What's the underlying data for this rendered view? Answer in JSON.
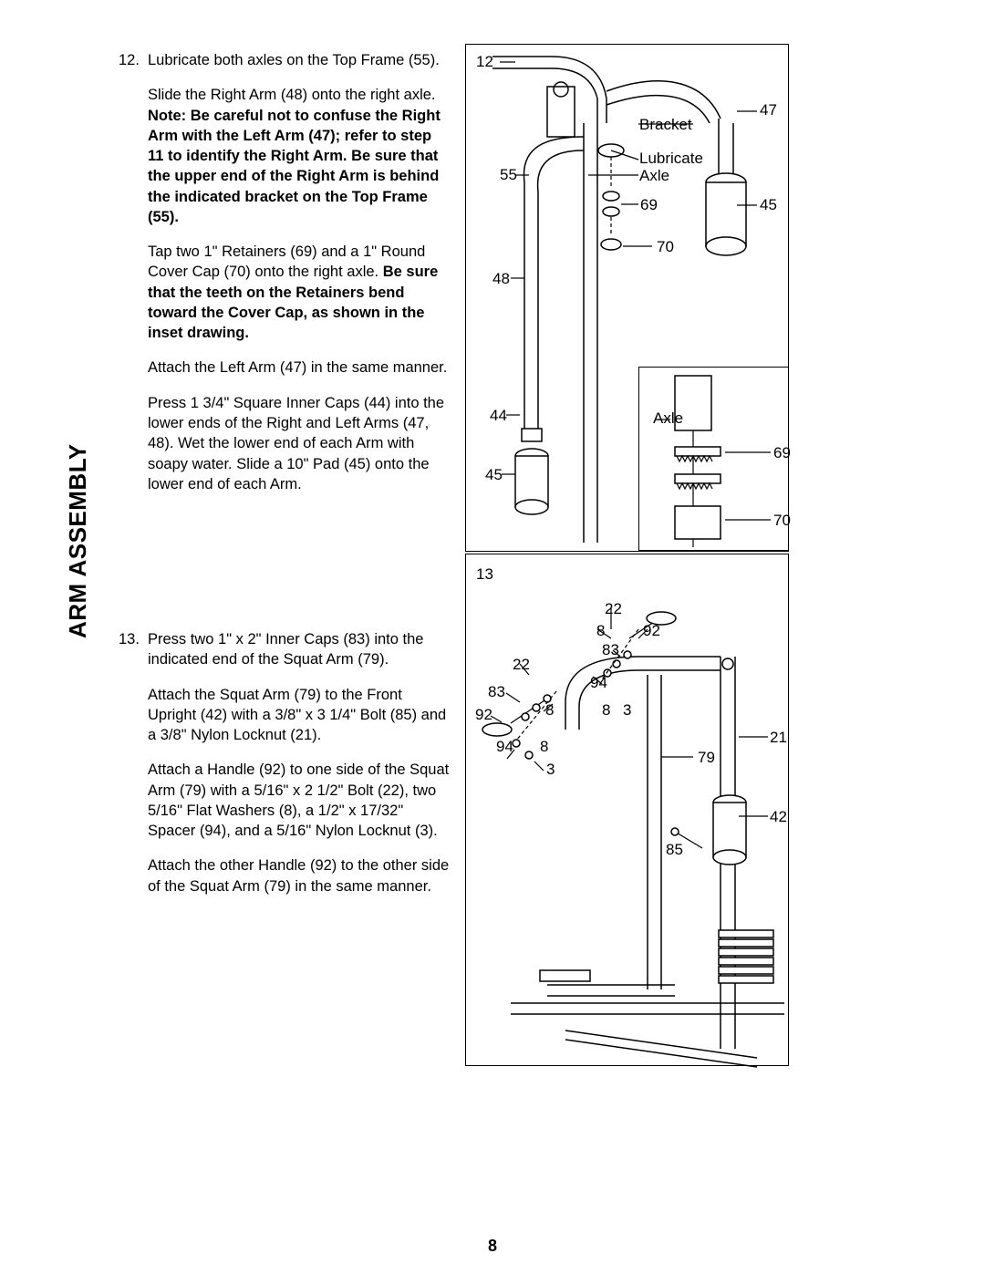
{
  "page_number": "8",
  "side_label": "ARM ASSEMBLY",
  "steps": [
    {
      "num": "12.",
      "paras": [
        {
          "html": "Lubricate both axles on the Top Frame (55)."
        },
        {
          "html": "Slide the Right Arm (48) onto the right axle. <span class=\"b\">Note: Be careful not to confuse the Right Arm with the Left Arm (47); refer to step 11 to identify the Right Arm. Be sure that the upper end of the Right Arm is behind the indicated bracket on the Top Frame (55).</span>"
        },
        {
          "html": "Tap two 1\" Retainers (69) and a 1\" Round Cover Cap (70) onto the right axle. <span class=\"b\">Be sure that the teeth on the Retainers bend toward the Cover Cap, as shown in the inset drawing.</span>"
        },
        {
          "html": "Attach the Left Arm (47) in the same manner."
        },
        {
          "html": "Press 1 3/4\" Square Inner Caps (44) into the lower ends of the Right and Left Arms (47, 48). Wet the lower end of each Arm with soapy water. Slide a 10\" Pad (45) onto the lower end of each Arm."
        }
      ]
    },
    {
      "num": "13.",
      "paras": [
        {
          "html": "Press two 1\" x 2\" Inner Caps (83) into the indicated end of the Squat Arm (79)."
        },
        {
          "html": "Attach the Squat Arm (79) to the Front Upright (42) with a 3/8\" x 3 1/4\" Bolt (85) and a 3/8\" Nylon Locknut (21)."
        },
        {
          "html": "Attach a Handle (92) to one side of the Squat Arm (79) with a 5/16\" x 2 1/2\" Bolt (22), two 5/16\" Flat Washers (8), a 1/2\" x 17/32\" Spacer (94), and a 5/16\" Nylon Locknut (3)."
        },
        {
          "html": "Attach the other Handle (92) to the other side of the Squat Arm (79) in the same manner."
        }
      ]
    }
  ],
  "panel12_idx": "12",
  "panel13_idx": "13",
  "labels": {
    "bracket": "Bracket",
    "lubricate": "Lubricate",
    "axle1": "Axle",
    "axle2": "Axle",
    "n47": "47",
    "n55": "55",
    "n69a": "69",
    "n45a": "45",
    "n70a": "70",
    "n48": "48",
    "n44": "44",
    "n45b": "45",
    "n69b": "69",
    "n70b": "70",
    "n22a": "22",
    "n8a": "8",
    "n92a": "92",
    "n83a": "83",
    "n22b": "22",
    "n83b": "83",
    "n94a": "94",
    "n92b": "92",
    "n8b": "8",
    "n8c": "8",
    "n3a": "3",
    "n94b": "94",
    "n8d": "8",
    "n3b": "3",
    "n79": "79",
    "n21": "21",
    "n42": "42",
    "n85": "85"
  },
  "colors": {
    "ink": "#000000",
    "paper": "#ffffff"
  },
  "font": {
    "family": "Arial",
    "body_pt": 12,
    "label_pt": 13,
    "side_pt": 20,
    "side_weight": 700
  }
}
